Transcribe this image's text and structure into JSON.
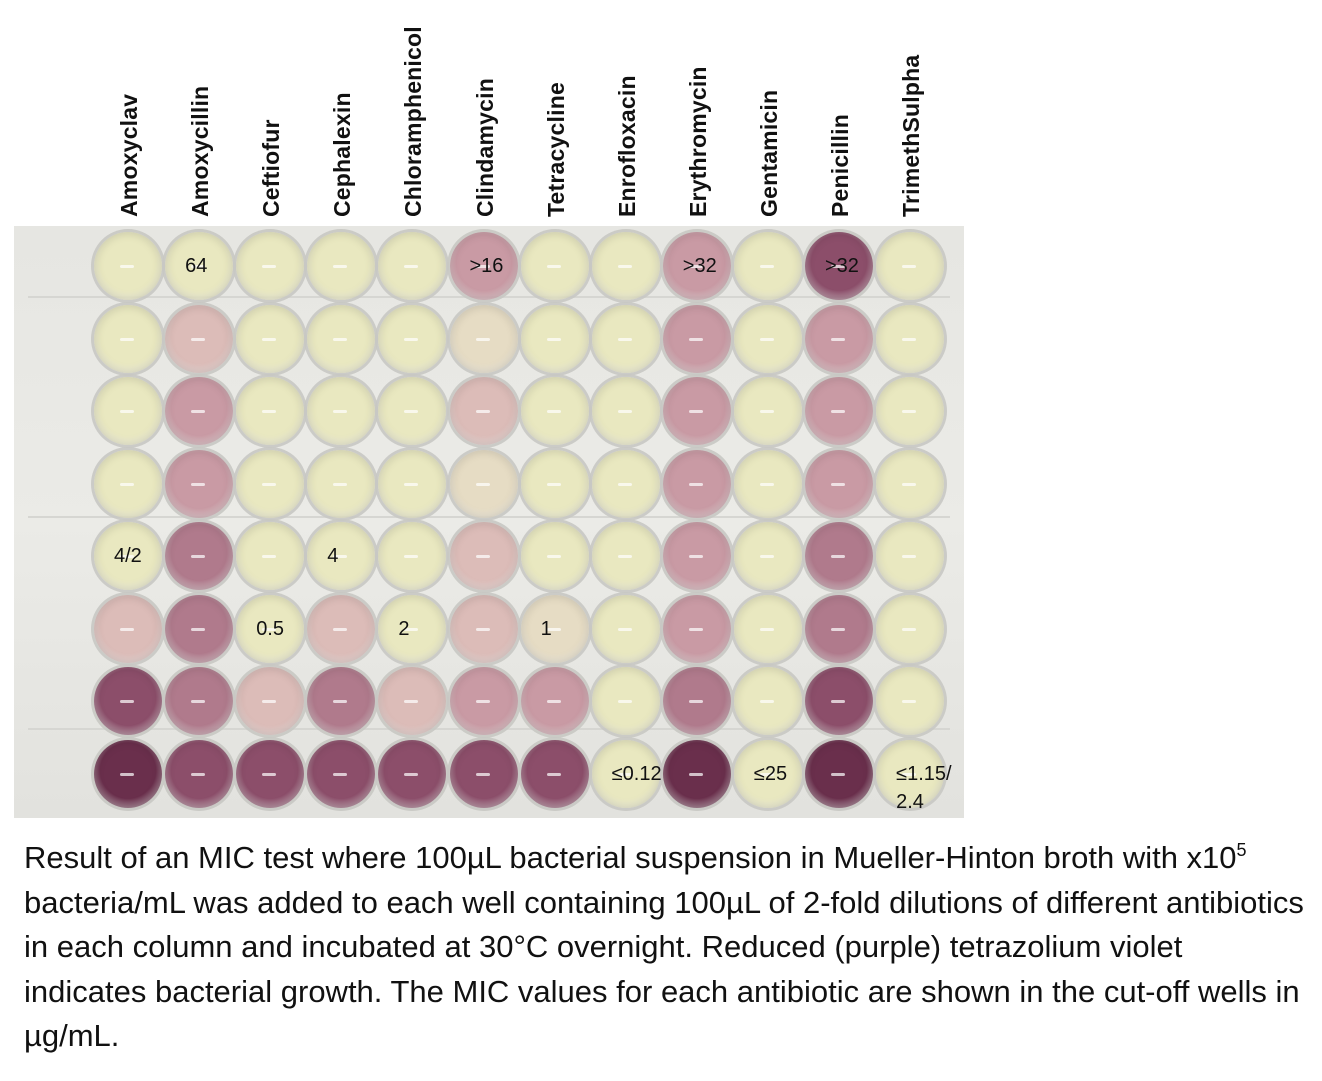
{
  "antibiotics": [
    "Amoxyclav",
    "Amoxycillin",
    "Ceftiofur",
    "Cephalexin",
    "Chloramphenicol",
    "Clindamycin",
    "Tetracycline",
    "Enrofloxacin",
    "Erythromycin",
    "Gentamicin",
    "Penicillin",
    "TrimethSulpha"
  ],
  "well_colors": {
    "Y": "#e9e8c0",
    "Ly": "#e6dcc4",
    "Lp": "#dcbcb8",
    "Mp": "#c99aa4",
    "Pp": "#b07a8c",
    "Dp": "#8c4e6a",
    "Vd": "#6a2f4c"
  },
  "plate_grid": [
    [
      "Y",
      "Y",
      "Y",
      "Y",
      "Y",
      "Mp",
      "Y",
      "Y",
      "Mp",
      "Y",
      "Dp",
      "Y"
    ],
    [
      "Y",
      "Lp",
      "Y",
      "Y",
      "Y",
      "Ly",
      "Y",
      "Y",
      "Mp",
      "Y",
      "Mp",
      "Y"
    ],
    [
      "Y",
      "Mp",
      "Y",
      "Y",
      "Y",
      "Lp",
      "Y",
      "Y",
      "Mp",
      "Y",
      "Mp",
      "Y"
    ],
    [
      "Y",
      "Mp",
      "Y",
      "Y",
      "Y",
      "Ly",
      "Y",
      "Y",
      "Mp",
      "Y",
      "Mp",
      "Y"
    ],
    [
      "Y",
      "Pp",
      "Y",
      "Y",
      "Y",
      "Lp",
      "Y",
      "Y",
      "Mp",
      "Y",
      "Pp",
      "Y"
    ],
    [
      "Lp",
      "Pp",
      "Y",
      "Lp",
      "Y",
      "Lp",
      "Ly",
      "Y",
      "Mp",
      "Y",
      "Pp",
      "Y"
    ],
    [
      "Dp",
      "Pp",
      "Lp",
      "Pp",
      "Lp",
      "Mp",
      "Mp",
      "Y",
      "Pp",
      "Y",
      "Dp",
      "Y"
    ],
    [
      "Vd",
      "Dp",
      "Dp",
      "Dp",
      "Dp",
      "Dp",
      "Dp",
      "Y",
      "Vd",
      "Y",
      "Vd",
      "Y"
    ]
  ],
  "mic_labels": [
    {
      "row": 0,
      "col": 1,
      "text": "64"
    },
    {
      "row": 0,
      "col": 5,
      "text": ">16"
    },
    {
      "row": 0,
      "col": 8,
      "text": ">32"
    },
    {
      "row": 0,
      "col": 10,
      "text": ">32"
    },
    {
      "row": 4,
      "col": 0,
      "text": "4/2"
    },
    {
      "row": 4,
      "col": 3,
      "text": "4"
    },
    {
      "row": 5,
      "col": 2,
      "text": "0.5"
    },
    {
      "row": 5,
      "col": 4,
      "text": "2"
    },
    {
      "row": 5,
      "col": 6,
      "text": "1"
    },
    {
      "row": 7,
      "col": 7,
      "text": "≤0.12"
    },
    {
      "row": 7,
      "col": 9,
      "text": "≤25"
    },
    {
      "row": 7,
      "col": 11,
      "text": "≤1.15/",
      "text2": "2.4"
    }
  ],
  "caption": {
    "part1": "Result of an MIC test where 100µL bacterial suspension in Mueller-Hinton broth with x10",
    "sup": "5",
    "part2": " bacteria/mL was added to each well containing 100µL of 2-fold dilutions of different antibiotics in each column and incubated at 30°C overnight. Reduced (purple) tetrazolium violet indicates bacterial growth. The MIC values for each antibiotic are shown in the cut-off wells in µg/mL."
  }
}
